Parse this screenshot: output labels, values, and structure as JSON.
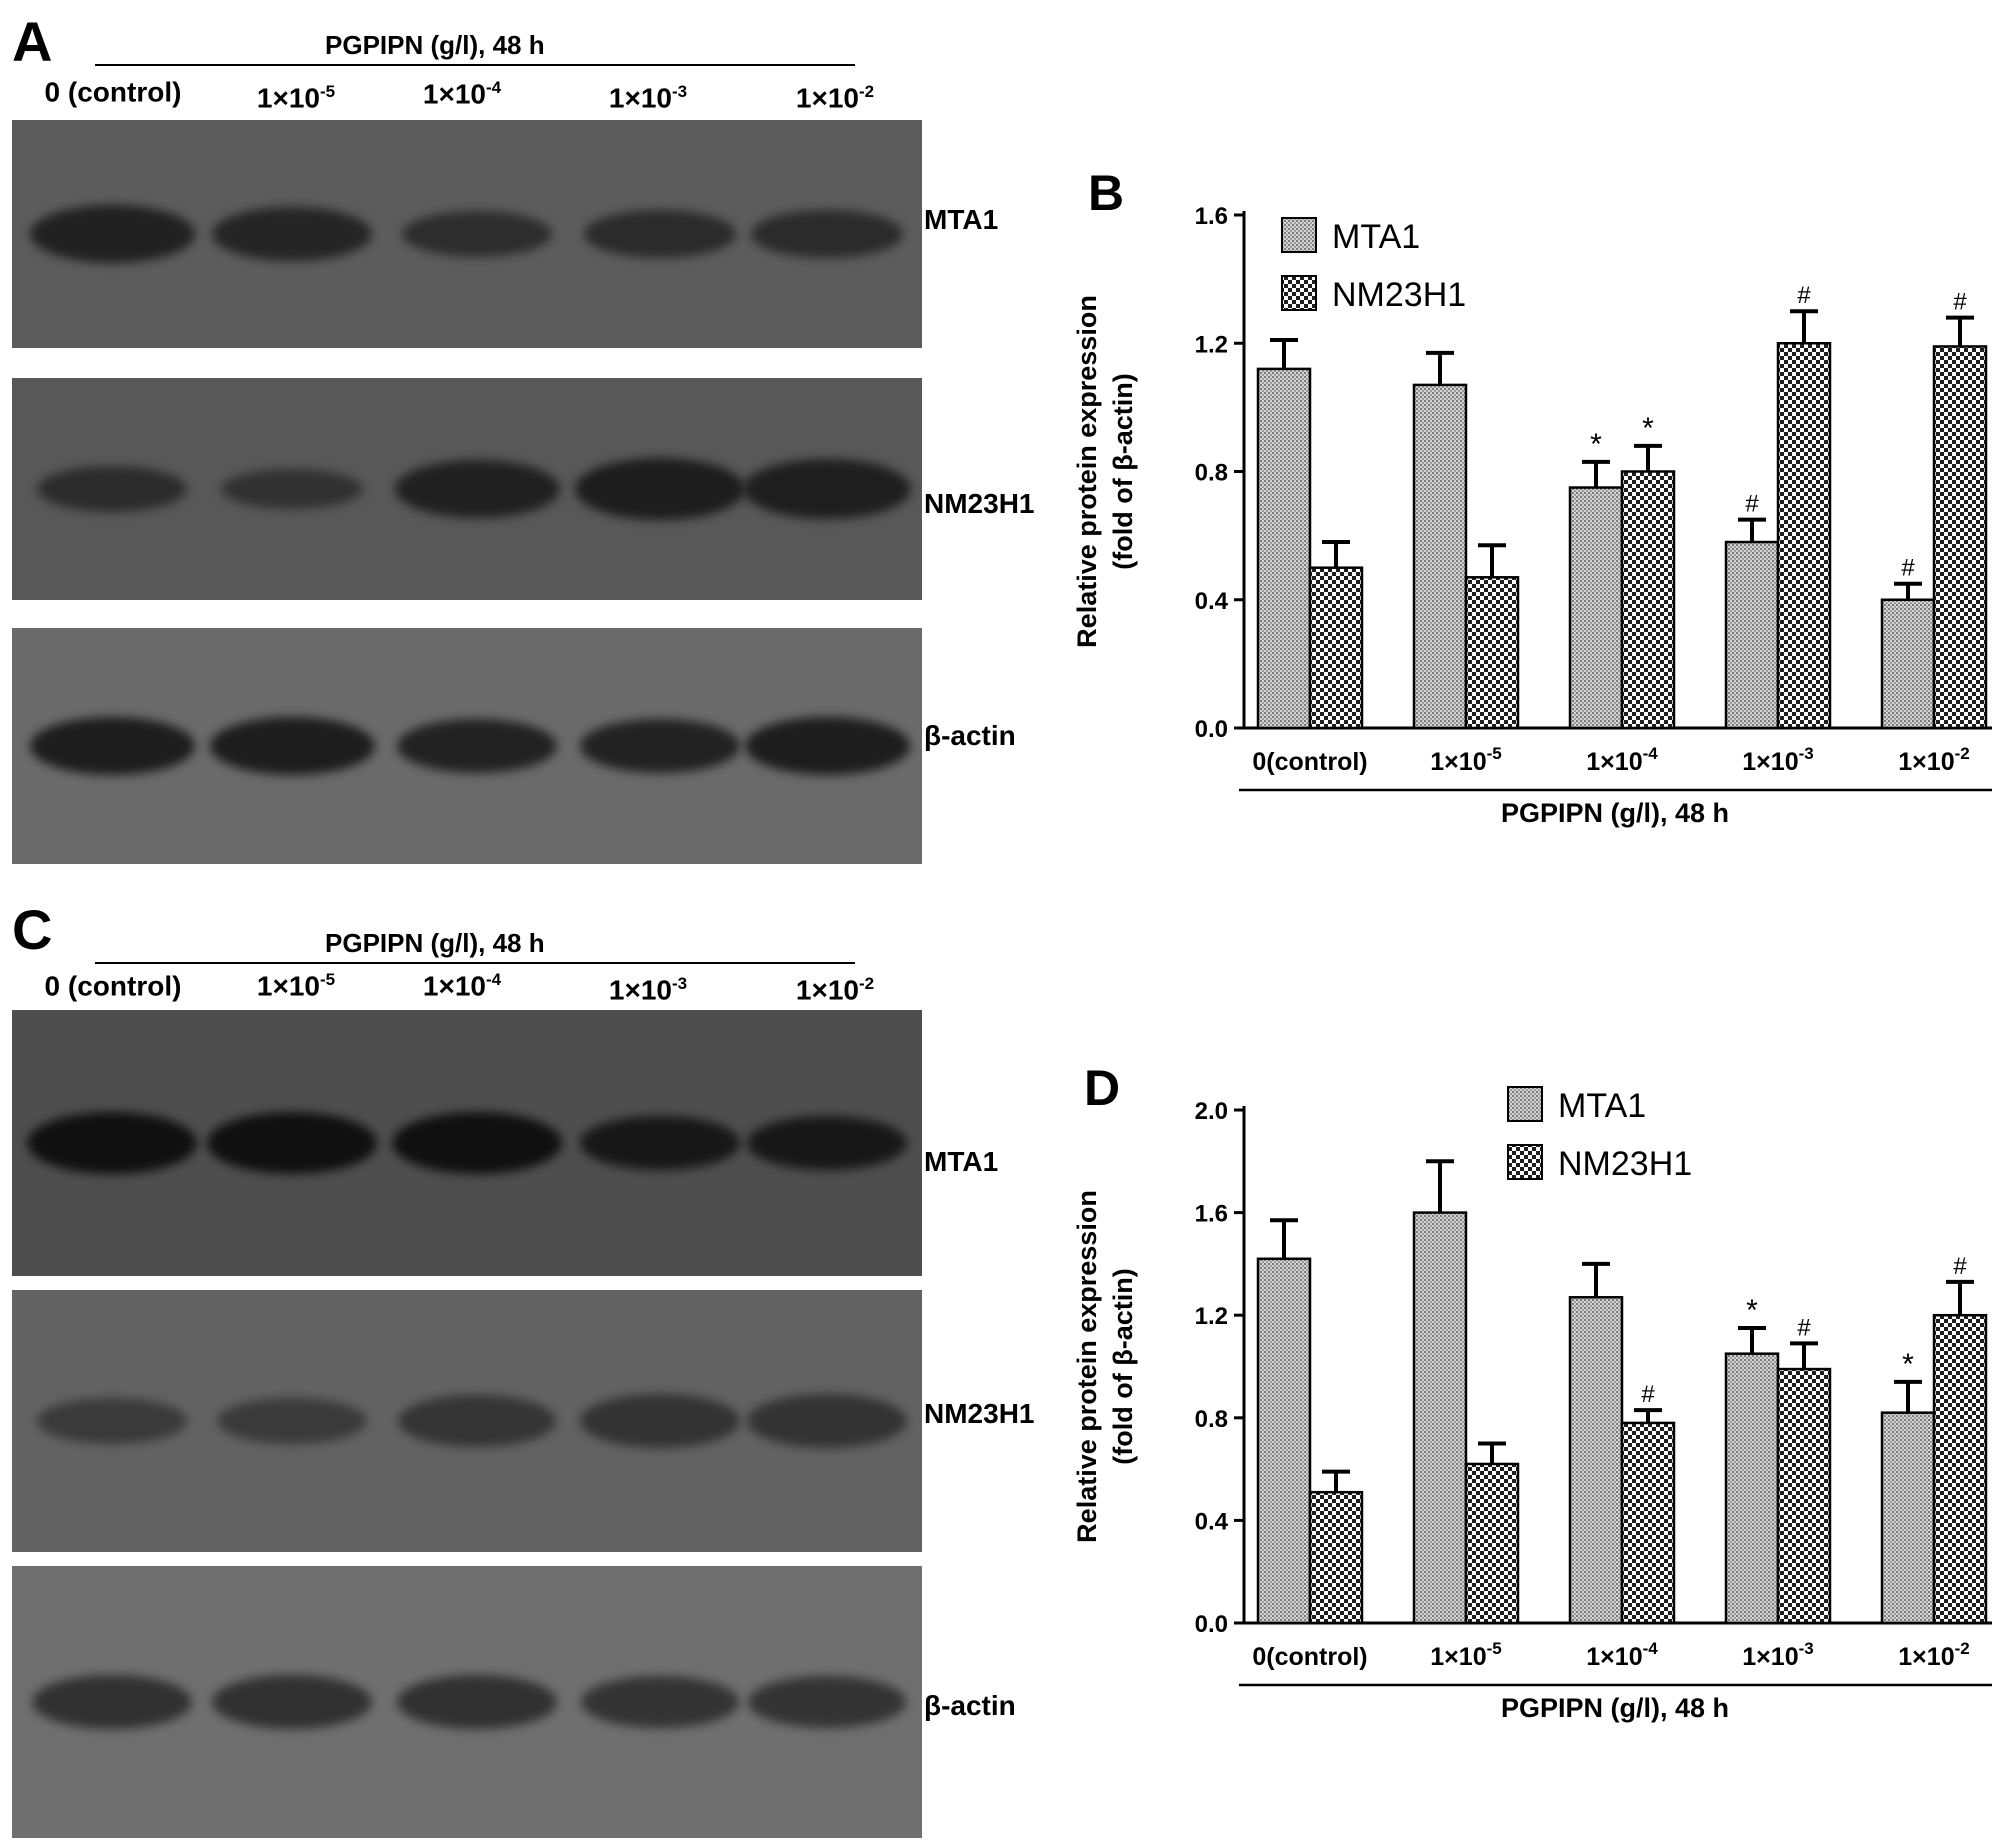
{
  "panel_letters": {
    "a": "A",
    "b": "B",
    "c": "C",
    "d": "D"
  },
  "blots": [
    {
      "header": "PGPIPN (g/l), 48 h",
      "lanes": [
        {
          "base": "0 (control)",
          "exp": ""
        },
        {
          "base": "1×10",
          "exp": "-5"
        },
        {
          "base": "1×10",
          "exp": "-4"
        },
        {
          "base": "1×10",
          "exp": "-3"
        },
        {
          "base": "1×10",
          "exp": "-2"
        }
      ],
      "strips": [
        {
          "protein": "MTA1",
          "background": "#5c5c5c",
          "band_color": "#1a1a1a",
          "band_intensity": [
            0.9,
            0.8,
            0.6,
            0.65,
            0.65
          ]
        },
        {
          "protein": "NM23H1",
          "background": "#585858",
          "band_color": "#1a1a1a",
          "band_intensity": [
            0.6,
            0.45,
            0.9,
            1.0,
            0.95
          ]
        },
        {
          "protein": "β-actin",
          "background": "#6a6a6a",
          "band_color": "#141414",
          "band_intensity": [
            0.9,
            0.9,
            0.8,
            0.8,
            0.9
          ]
        }
      ]
    },
    {
      "header": "PGPIPN (g/l), 48 h",
      "lanes": [
        {
          "base": "0 (control)",
          "exp": ""
        },
        {
          "base": "1×10",
          "exp": "-5"
        },
        {
          "base": "1×10",
          "exp": "-4"
        },
        {
          "base": "1×10",
          "exp": "-3"
        },
        {
          "base": "1×10",
          "exp": "-2"
        }
      ],
      "strips": [
        {
          "protein": "MTA1",
          "background": "#4e4e4e",
          "band_color": "#0d0d0d",
          "band_intensity": [
            1.0,
            1.0,
            1.0,
            0.8,
            0.8
          ]
        },
        {
          "protein": "NM23H1",
          "background": "#626262",
          "band_color": "#2a2a2a",
          "band_intensity": [
            0.6,
            0.6,
            0.75,
            0.8,
            0.8
          ]
        },
        {
          "protein": "β-actin",
          "background": "#6f6f6f",
          "band_color": "#252525",
          "band_intensity": [
            0.8,
            0.8,
            0.8,
            0.75,
            0.75
          ]
        }
      ]
    }
  ],
  "chart_data": [
    {
      "type": "bar",
      "panel": "B",
      "categories": [
        {
          "base": "0(control)",
          "exp": ""
        },
        {
          "base": "1×10",
          "exp": "-5"
        },
        {
          "base": "1×10",
          "exp": "-4"
        },
        {
          "base": "1×10",
          "exp": "-3"
        },
        {
          "base": "1×10",
          "exp": "-2"
        }
      ],
      "series": [
        {
          "name": "MTA1",
          "pattern": "dense-grey",
          "values": [
            1.12,
            1.07,
            0.75,
            0.58,
            0.4
          ],
          "errors": [
            0.09,
            0.1,
            0.08,
            0.07,
            0.05
          ],
          "annotations": [
            "",
            "",
            "*",
            "#",
            "#"
          ]
        },
        {
          "name": "NM23H1",
          "pattern": "checker",
          "values": [
            0.5,
            0.47,
            0.8,
            1.2,
            1.19
          ],
          "errors": [
            0.08,
            0.1,
            0.08,
            0.1,
            0.09
          ],
          "annotations": [
            "",
            "",
            "*",
            "#",
            "#"
          ]
        }
      ],
      "ylabel": [
        "Relative protein expression",
        "(fold of β-actin)"
      ],
      "xlabel": "PGPIPN (g/l), 48 h",
      "ylim": [
        0,
        1.6
      ],
      "yticks": [
        "0.0",
        "0.4",
        "0.8",
        "1.2",
        "1.6"
      ],
      "grid": false,
      "legend_position": "top-left"
    },
    {
      "type": "bar",
      "panel": "D",
      "categories": [
        {
          "base": "0(control)",
          "exp": ""
        },
        {
          "base": "1×10",
          "exp": "-5"
        },
        {
          "base": "1×10",
          "exp": "-4"
        },
        {
          "base": "1×10",
          "exp": "-3"
        },
        {
          "base": "1×10",
          "exp": "-2"
        }
      ],
      "series": [
        {
          "name": "MTA1",
          "pattern": "dense-grey",
          "values": [
            1.42,
            1.6,
            1.27,
            1.05,
            0.82
          ],
          "errors": [
            0.15,
            0.2,
            0.13,
            0.1,
            0.12
          ],
          "annotations": [
            "",
            "",
            "",
            "*",
            "*"
          ]
        },
        {
          "name": "NM23H1",
          "pattern": "checker",
          "values": [
            0.51,
            0.62,
            0.78,
            0.99,
            1.2
          ],
          "errors": [
            0.08,
            0.08,
            0.05,
            0.1,
            0.13
          ],
          "annotations": [
            "",
            "",
            "#",
            "#",
            "#"
          ]
        }
      ],
      "ylabel": [
        "Relative protein expression",
        "(fold of β-actin)"
      ],
      "xlabel": "PGPIPN (g/l), 48 h",
      "ylim": [
        0,
        2.0
      ],
      "yticks": [
        "0.0",
        "0.4",
        "0.8",
        "1.2",
        "1.6",
        "2.0"
      ],
      "grid": false,
      "legend_position": "top-center"
    }
  ]
}
